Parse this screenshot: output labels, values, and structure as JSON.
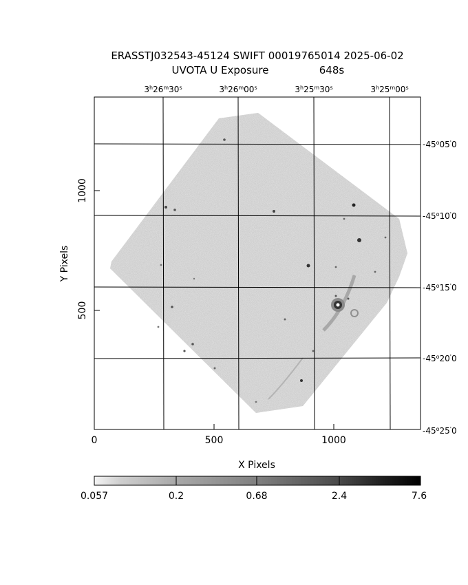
{
  "header": {
    "title_line1": "ERASSTJ032543-45124 SWIFT 00019765014 2025-06-02",
    "title_line2_left": "UVOTA U Exposure",
    "title_line2_right": "648s"
  },
  "axes": {
    "xlabel": "X Pixels",
    "ylabel": "Y Pixels",
    "x_ticks": [
      "0",
      "500",
      "1000"
    ],
    "y_ticks": [
      "500",
      "1000"
    ]
  },
  "ra_ticks": [
    {
      "h": "3",
      "m": "26",
      "s": "30"
    },
    {
      "h": "3",
      "m": "26",
      "s": "00"
    },
    {
      "h": "3",
      "m": "25",
      "s": "30"
    },
    {
      "h": "3",
      "m": "25",
      "s": "00"
    }
  ],
  "dec_ticks": [
    {
      "deg": "-45",
      "min": "05",
      "sec": "0"
    },
    {
      "deg": "-45",
      "min": "10",
      "sec": "0"
    },
    {
      "deg": "-45",
      "min": "15",
      "sec": "0"
    },
    {
      "deg": "-45",
      "min": "20",
      "sec": "0"
    },
    {
      "deg": "-45",
      "min": "25",
      "sec": "0"
    }
  ],
  "colorbar": {
    "labels": [
      "0.057",
      "0.2",
      "0.68",
      "2.4",
      "7.6"
    ]
  }
}
